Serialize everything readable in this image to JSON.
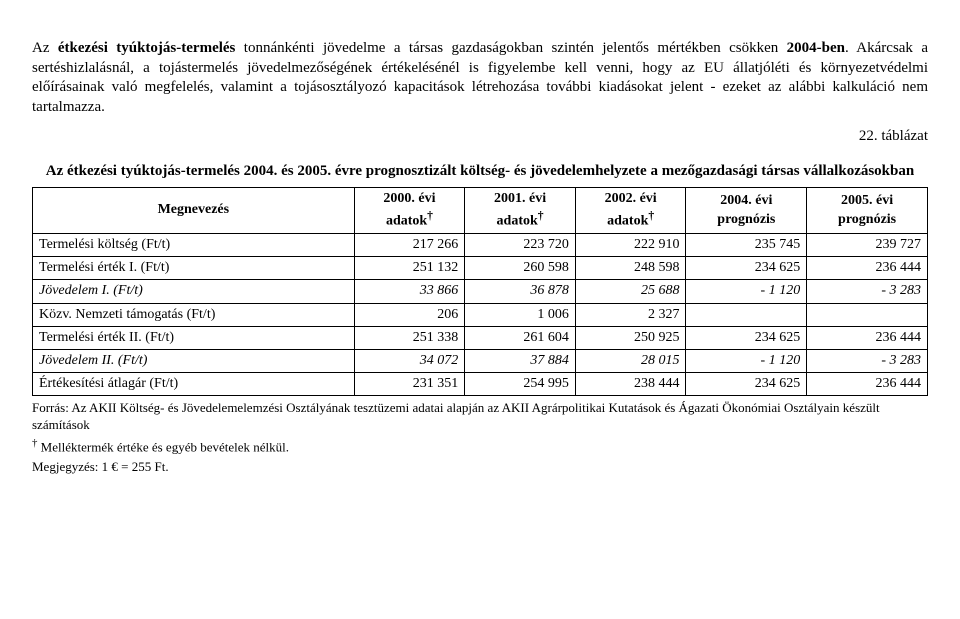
{
  "para1_pre": "Az ",
  "para1_b1": "étkezési tyúktojás-termelés",
  "para1_mid1": " tonnánkénti jövedelme a társas gazdaságokban szintén jelentős mértékben csökken ",
  "para1_b2": "2004-ben",
  "para1_mid2": ". Akárcsak a sertéshizlalásnál, a tojástermelés jövedelmezőségének értékelésénél is figyelembe kell venni, hogy az EU állatjóléti és környezetvédelmi előírásainak való megfelelés, valamint a tojásosztályozó kapacitások létrehozása további kiadásokat jelent - ezeket az alábbi kalkuláció nem tartalmazza.",
  "table_num": "22. táblázat",
  "table_caption": "Az étkezési tyúktojás-termelés 2004. és 2005. évre prognosztizált költség- és jövedelemhelyzete a mezőgazdasági társas vállalkozásokban",
  "col0": "Megnevezés",
  "col1a": "2000. évi",
  "col1b": "adatok",
  "col2a": "2001. évi",
  "col2b": "adatok",
  "col3a": "2002. évi",
  "col3b": "adatok",
  "col4a": "2004. évi",
  "col4b": "prognózis",
  "col5a": "2005. évi",
  "col5b": "prognózis",
  "dag": "†",
  "r1l": "Termelési költség (Ft/t)",
  "r1v1": "217 266",
  "r1v2": "223 720",
  "r1v3": "222 910",
  "r1v4": "235 745",
  "r1v5": "239 727",
  "r2l": "Termelési érték I. (Ft/t)",
  "r2v1": "251 132",
  "r2v2": "260 598",
  "r2v3": "248 598",
  "r2v4": "234 625",
  "r2v5": "236 444",
  "r3l": "Jövedelem I. (Ft/t)",
  "r3v1": "33 866",
  "r3v2": "36 878",
  "r3v3": "25 688",
  "r3v4": "- 1 120",
  "r3v5": "- 3 283",
  "r4l": "Közv. Nemzeti támogatás (Ft/t)",
  "r4v1": "206",
  "r4v2": "1 006",
  "r4v3": "2 327",
  "r4v4": "",
  "r4v5": "",
  "r5l": "Termelési érték II. (Ft/t)",
  "r5v1": "251 338",
  "r5v2": "261 604",
  "r5v3": "250 925",
  "r5v4": "234 625",
  "r5v5": "236 444",
  "r6l": "Jövedelem II. (Ft/t)",
  "r6v1": "34 072",
  "r6v2": "37 884",
  "r6v3": "28 015",
  "r6v4": "- 1 120",
  "r6v5": "- 3 283",
  "r7l": "Értékesítési átlagár (Ft/t)",
  "r7v1": "231 351",
  "r7v2": "254 995",
  "r7v3": "238 444",
  "r7v4": "234 625",
  "r7v5": "236 444",
  "fn1": "Forrás: Az AKII Költség- és Jövedelemelemzési Osztályának tesztüzemi adatai alapján az AKII Agrárpolitikai Kutatások és Ágazati Ökonómiai Osztályain készült számítások",
  "fn2_pre": "† ",
  "fn2": "Melléktermék értéke és egyéb bevételek nélkül.",
  "fn3": "Megjegyzés: 1 € = 255 Ft."
}
